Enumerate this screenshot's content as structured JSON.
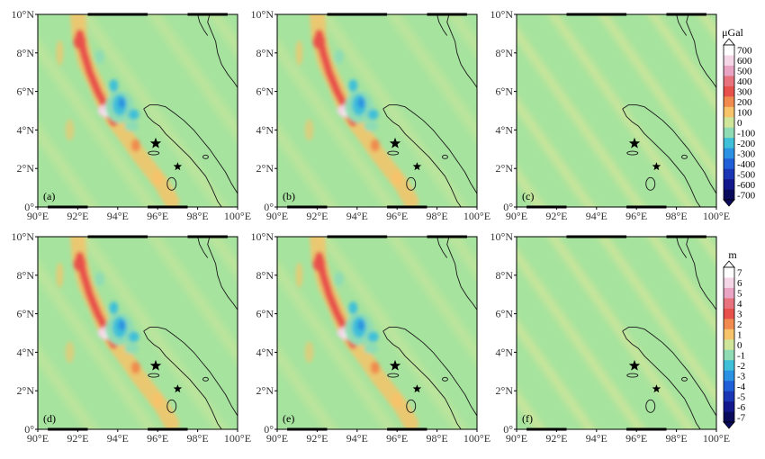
{
  "colors": {
    "background": "#a6e39e",
    "coast": "#1a1a1a",
    "frame": "#000000",
    "stripe": "#cfe59a"
  },
  "axes": {
    "x_ticks": [
      "90°E",
      "92°E",
      "94°E",
      "96°E",
      "98°E",
      "100°E"
    ],
    "y_ticks": [
      "10°N",
      "8°N",
      "6°N",
      "4°N",
      "2°N",
      "0°"
    ]
  },
  "panels": [
    {
      "label": "(a)",
      "pattern": "anomaly"
    },
    {
      "label": "(b)",
      "pattern": "anomaly"
    },
    {
      "label": "(c)",
      "pattern": "stripes"
    },
    {
      "label": "(d)",
      "pattern": "anomaly"
    },
    {
      "label": "(e)",
      "pattern": "anomaly"
    },
    {
      "label": "(f)",
      "pattern": "stripes"
    }
  ],
  "colorbars": [
    {
      "unit": "μGal",
      "ticks": [
        "700",
        "600",
        "500",
        "400",
        "300",
        "200",
        "100",
        "0",
        "-100",
        "-200",
        "-300",
        "-400",
        "-500",
        "-600",
        "-700"
      ]
    },
    {
      "unit": "m",
      "ticks": [
        "7",
        "6",
        "5",
        "4",
        "3",
        "2",
        "1",
        "0",
        "-1",
        "-2",
        "-3",
        "-4",
        "-5",
        "-6",
        "-7"
      ]
    }
  ],
  "colorbar_colors": [
    "#ffffff",
    "#f4d6e6",
    "#e9a3c3",
    "#e8737e",
    "#e8514b",
    "#f08a4e",
    "#f6c36a",
    "#cfe59a",
    "#8fdcb4",
    "#3fc0d8",
    "#2b91e2",
    "#1f5fd8",
    "#1a36b5",
    "#12178c",
    "#0a0a5c"
  ],
  "markers": {
    "epicenter_1": {
      "lon": 95.9,
      "lat": 3.3
    },
    "epicenter_2": {
      "lon": 97.0,
      "lat": 2.1
    }
  }
}
